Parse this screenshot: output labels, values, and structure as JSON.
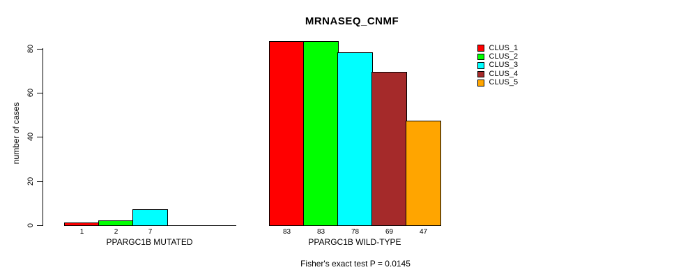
{
  "title": "MRNASEQ_CNMF",
  "chart_data": {
    "type": "bar",
    "title": "MRNASEQ_CNMF",
    "xlabel": "",
    "ylabel": "number of cases",
    "ylim": [
      0,
      80
    ],
    "yticks": [
      0,
      20,
      40,
      60,
      80
    ],
    "grid": false,
    "categories": [
      "CLUS_1",
      "CLUS_2",
      "CLUS_3",
      "CLUS_4",
      "CLUS_5"
    ],
    "palette": [
      "#FF0000",
      "#00FF00",
      "#00FFFF",
      "#A52A2A",
      "#FFA500"
    ],
    "groups": [
      {
        "label": "PPARGC1B MUTATED",
        "values": [
          1,
          2,
          7,
          0,
          0
        ],
        "bar_labels": [
          "1",
          "2",
          "7",
          "",
          ""
        ]
      },
      {
        "label": "PPARGC1B WILD-TYPE",
        "values": [
          83,
          83,
          78,
          69,
          47
        ],
        "bar_labels": [
          "83",
          "83",
          "78",
          "69",
          "47"
        ]
      }
    ],
    "legend": {
      "position": "right",
      "entries": [
        {
          "label": "CLUS_1",
          "color": "#FF0000"
        },
        {
          "label": "CLUS_2",
          "color": "#00FF00"
        },
        {
          "label": "CLUS_3",
          "color": "#00FFFF"
        },
        {
          "label": "CLUS_4",
          "color": "#A52A2A"
        },
        {
          "label": "CLUS_5",
          "color": "#FFA500"
        }
      ]
    },
    "annotation": "Fisher's exact test P = 0.0145"
  }
}
